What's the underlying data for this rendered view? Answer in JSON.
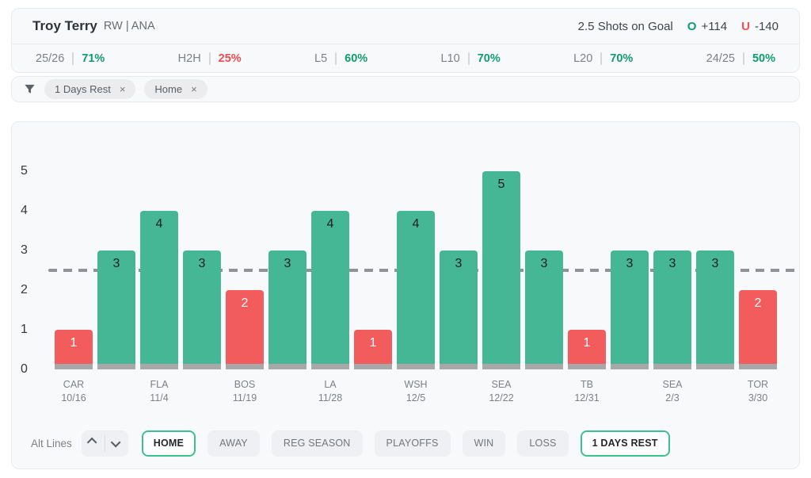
{
  "header": {
    "player": "Troy Terry",
    "position_team": "RW | ANA",
    "prop": "2.5 Shots on Goal",
    "over_label": "O",
    "over_odds": "+114",
    "under_label": "U",
    "under_odds": "-140"
  },
  "stats": {
    "items": [
      {
        "label": "25/26",
        "value": "71%",
        "trend": "up"
      },
      {
        "label": "H2H",
        "value": "25%",
        "trend": "down"
      },
      {
        "label": "L5",
        "value": "60%",
        "trend": "up"
      },
      {
        "label": "L10",
        "value": "70%",
        "trend": "up"
      },
      {
        "label": "L20",
        "value": "70%",
        "trend": "up"
      },
      {
        "label": "24/25",
        "value": "50%",
        "trend": "up"
      }
    ]
  },
  "filters": {
    "remove_icon": "×",
    "chips": [
      {
        "label": "1 Days Rest"
      },
      {
        "label": "Home"
      }
    ]
  },
  "chart_data": {
    "type": "bar",
    "ylabel": "",
    "xlabel": "",
    "ylim": [
      0,
      5
    ],
    "yticks": [
      0,
      1,
      2,
      3,
      4,
      5
    ],
    "line": 2.5,
    "grid": false,
    "bars": [
      {
        "value": 1,
        "result": "under"
      },
      {
        "value": 3,
        "result": "over"
      },
      {
        "value": 4,
        "result": "over"
      },
      {
        "value": 3,
        "result": "over"
      },
      {
        "value": 2,
        "result": "under"
      },
      {
        "value": 3,
        "result": "over"
      },
      {
        "value": 4,
        "result": "over"
      },
      {
        "value": 1,
        "result": "under"
      },
      {
        "value": 4,
        "result": "over"
      },
      {
        "value": 3,
        "result": "over"
      },
      {
        "value": 5,
        "result": "over"
      },
      {
        "value": 3,
        "result": "over"
      },
      {
        "value": 1,
        "result": "under"
      },
      {
        "value": 3,
        "result": "over"
      },
      {
        "value": 3,
        "result": "over"
      },
      {
        "value": 3,
        "result": "over"
      },
      {
        "value": 2,
        "result": "under"
      }
    ],
    "x_ticks": [
      {
        "index": 0,
        "team": "CAR",
        "date": "10/16"
      },
      {
        "index": 2,
        "team": "FLA",
        "date": "11/4"
      },
      {
        "index": 4,
        "team": "BOS",
        "date": "11/19"
      },
      {
        "index": 6,
        "team": "LA",
        "date": "11/28"
      },
      {
        "index": 8,
        "team": "WSH",
        "date": "12/5"
      },
      {
        "index": 10,
        "team": "SEA",
        "date": "12/22"
      },
      {
        "index": 12,
        "team": "TB",
        "date": "12/31"
      },
      {
        "index": 14,
        "team": "SEA",
        "date": "2/3"
      },
      {
        "index": 16,
        "team": "TOR",
        "date": "3/30"
      }
    ],
    "colors": {
      "over": "#45b794",
      "under": "#f25c5c",
      "base": "#a8a8a8",
      "line": "#8f9296"
    }
  },
  "controls": {
    "alt_lines_label": "Alt Lines",
    "filter_buttons": [
      {
        "label": "HOME",
        "active": true
      },
      {
        "label": "AWAY",
        "active": false
      },
      {
        "label": "REG SEASON",
        "active": false
      },
      {
        "label": "PLAYOFFS",
        "active": false
      },
      {
        "label": "WIN",
        "active": false
      },
      {
        "label": "LOSS",
        "active": false
      },
      {
        "label": "1 DAYS REST",
        "active": true
      }
    ]
  },
  "colors": {
    "stat_up": "#0f9d6c",
    "stat_down": "#ef4c4c",
    "active_border": "#3cc18e"
  }
}
